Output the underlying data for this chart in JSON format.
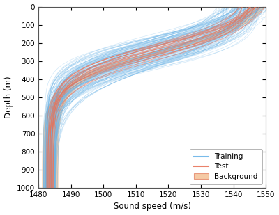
{
  "depth_min": 0,
  "depth_max": 1000,
  "speed_min": 1480,
  "speed_max": 1550,
  "xlabel": "Sound speed (m/s)",
  "ylabel": "Depth (m)",
  "xticks": [
    1480,
    1490,
    1500,
    1510,
    1520,
    1530,
    1540,
    1550
  ],
  "yticks": [
    0,
    100,
    200,
    300,
    400,
    500,
    600,
    700,
    800,
    900,
    1000
  ],
  "training_color": "#6ab4e8",
  "test_color": "#e8745a",
  "background_fill_color": "#f5c8a0",
  "background_edge_color": "#e8957a",
  "training_alpha": 0.3,
  "test_alpha": 0.55,
  "background_alpha": 0.85,
  "n_training": 150,
  "n_test": 20,
  "legend_loc": "lower right",
  "bg_color": "#ffffff",
  "seed": 7
}
